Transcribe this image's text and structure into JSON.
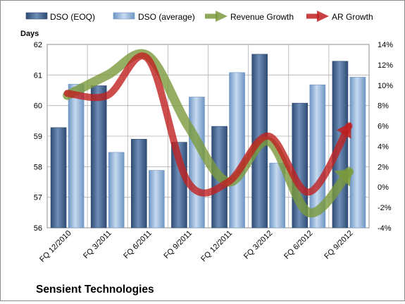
{
  "chart_data": {
    "type": "bar",
    "title": "Sensient Technologies",
    "ylabel": "Days",
    "categories": [
      "FQ 12/2010",
      "FQ 3/2011",
      "FQ 6/2011",
      "FQ 9/2011",
      "FQ 12/2011",
      "FQ 3/2012",
      "FQ 6/2012",
      "FQ 9/2012"
    ],
    "ylim": [
      56,
      62
    ],
    "yticks": [
      56,
      57,
      58,
      59,
      60,
      61,
      62
    ],
    "y2lim": [
      -4,
      14
    ],
    "y2ticks": [
      "-4%",
      "-2%",
      "0%",
      "2%",
      "4%",
      "6%",
      "8%",
      "10%",
      "12%",
      "14%"
    ],
    "grid": true,
    "legend_position": "top",
    "series": [
      {
        "name": "DSO (EOQ)",
        "kind": "bar",
        "axis": "left",
        "color": "#4a6b96",
        "values": [
          59.28,
          60.65,
          58.9,
          58.8,
          59.32,
          61.68,
          60.08,
          61.45
        ]
      },
      {
        "name": "DSO (average)",
        "kind": "bar",
        "axis": "left",
        "color": "#8fb1d6",
        "values": [
          60.7,
          58.47,
          57.88,
          60.28,
          61.08,
          58.12,
          60.68,
          60.93
        ]
      },
      {
        "name": "Revenue Growth",
        "kind": "line",
        "axis": "right",
        "unit": "%",
        "color": "#7a9a3c",
        "values": [
          9.0,
          11.0,
          12.9,
          6.0,
          0.5,
          4.5,
          -2.5,
          1.5
        ]
      },
      {
        "name": "AR Growth",
        "kind": "line",
        "axis": "right",
        "unit": "%",
        "color": "#c02020",
        "values": [
          9.2,
          9.0,
          12.6,
          0.5,
          0.5,
          5.0,
          -0.5,
          6.0
        ]
      }
    ]
  }
}
